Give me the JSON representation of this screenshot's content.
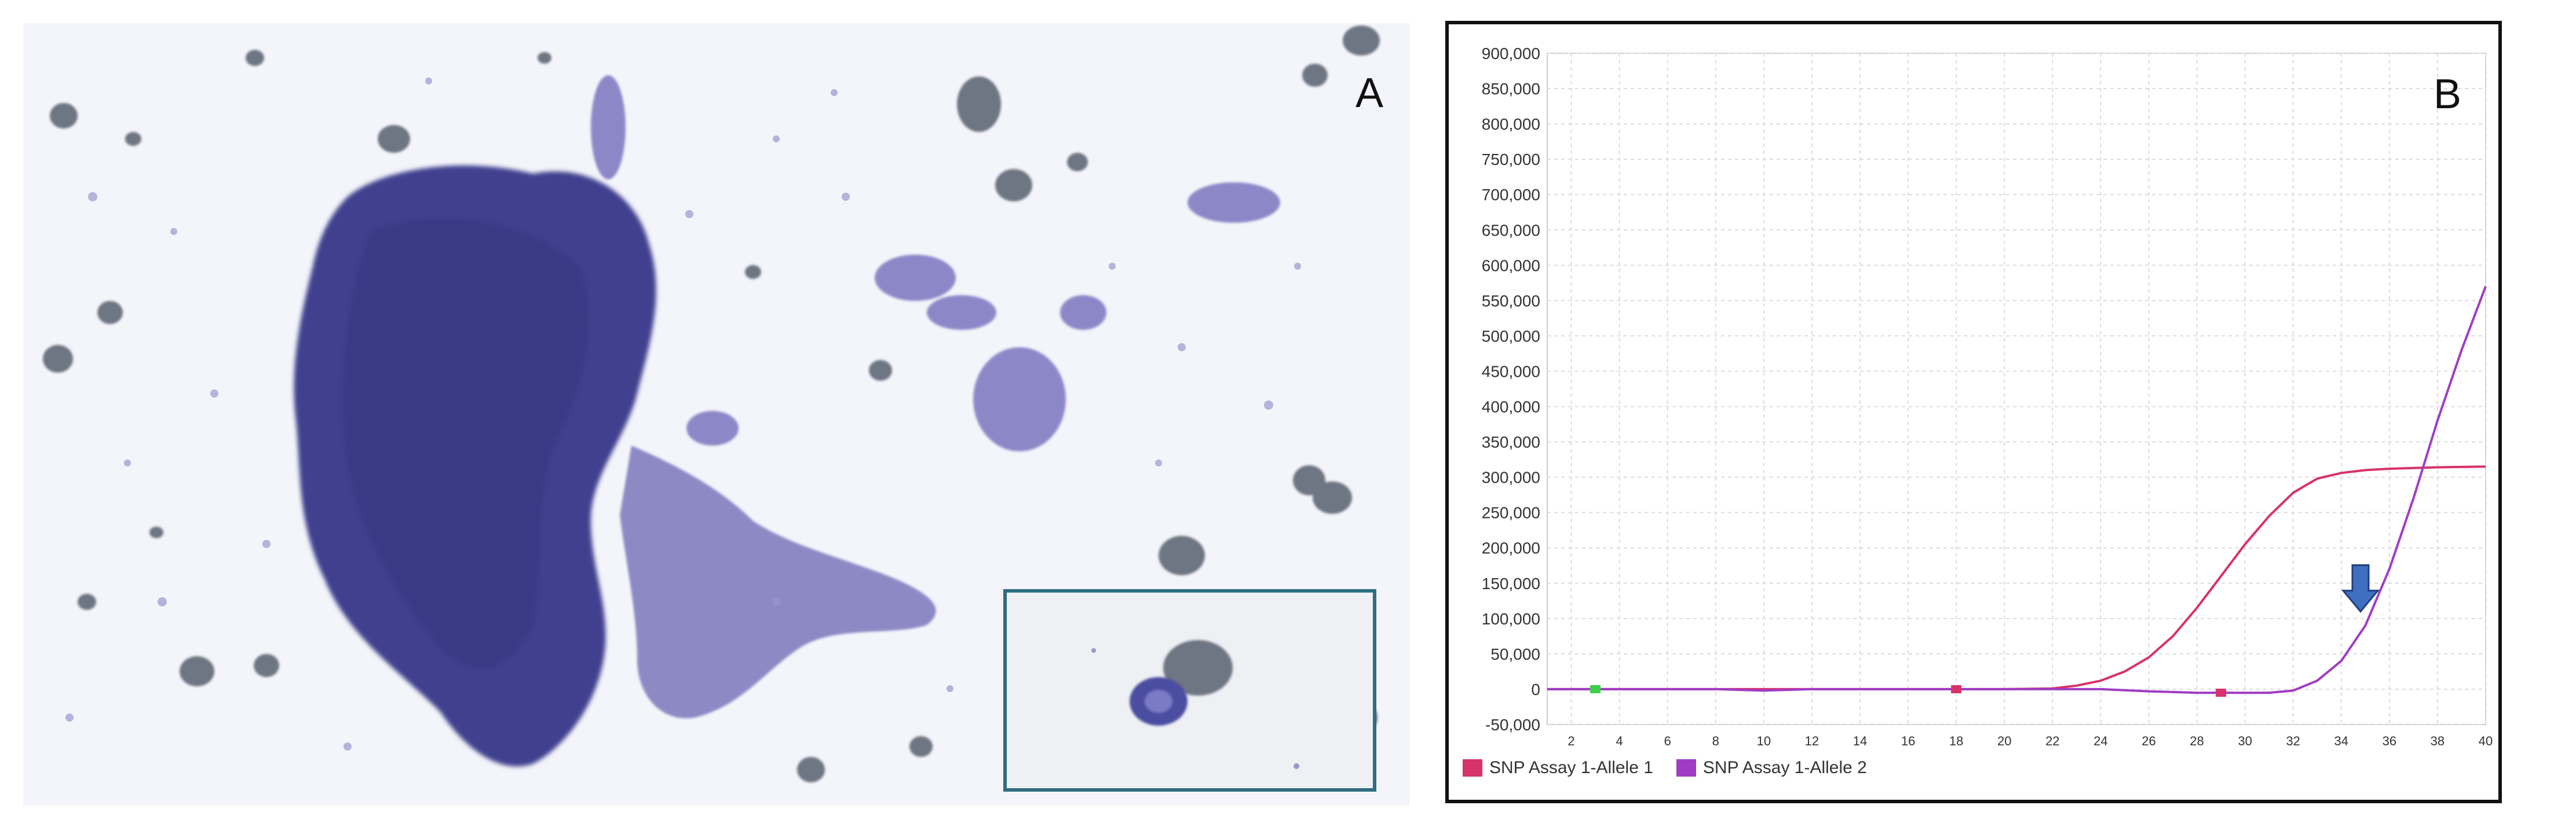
{
  "panels": {
    "a_label": "A",
    "b_label": "B"
  },
  "colors": {
    "stain": "#4c4ea0",
    "stain_dark": "#3b3c8f",
    "debris": "#6e7583",
    "inset_border": "#2e6e80",
    "allele1": "#d8326a",
    "allele2": "#a03cc4",
    "arrow": "#3f6fc0"
  },
  "chart_data": {
    "type": "line",
    "title": "",
    "xlabel": "",
    "ylabel": "",
    "xlim": [
      1,
      40
    ],
    "ylim": [
      -50000,
      900000
    ],
    "x_ticks": [
      2,
      4,
      6,
      8,
      10,
      12,
      14,
      16,
      18,
      20,
      22,
      24,
      26,
      28,
      30,
      32,
      34,
      36,
      38,
      40
    ],
    "y_ticks": [
      -50000,
      0,
      50000,
      100000,
      150000,
      200000,
      250000,
      300000,
      350000,
      400000,
      450000,
      500000,
      550000,
      600000,
      650000,
      700000,
      750000,
      800000,
      850000,
      900000
    ],
    "y_tick_labels": [
      "-50,000",
      "0",
      "50,000",
      "100,000",
      "150,000",
      "200,000",
      "250,000",
      "300,000",
      "350,000",
      "400,000",
      "450,000",
      "500,000",
      "550,000",
      "600,000",
      "650,000",
      "700,000",
      "750,000",
      "800,000",
      "850,000",
      "900,000"
    ],
    "grid": true,
    "legend_position": "bottom-left",
    "series": [
      {
        "name": "SNP Assay 1-Allele 1",
        "color": "#d8326a",
        "x": [
          1,
          4,
          8,
          12,
          16,
          20,
          22,
          23,
          24,
          25,
          26,
          27,
          28,
          29,
          30,
          31,
          32,
          33,
          34,
          35,
          36,
          38,
          40
        ],
        "y": [
          0,
          0,
          0,
          0,
          0,
          0,
          1000,
          5000,
          12000,
          25000,
          45000,
          75000,
          115000,
          160000,
          205000,
          245000,
          278000,
          298000,
          306000,
          310000,
          312000,
          314000,
          315000
        ]
      },
      {
        "name": "SNP Assay 1-Allele 2",
        "color": "#a03cc4",
        "x": [
          1,
          4,
          8,
          10,
          12,
          16,
          20,
          22,
          24,
          26,
          28,
          30,
          31,
          32,
          33,
          34,
          35,
          36,
          37,
          38,
          39,
          40
        ],
        "y": [
          0,
          0,
          0,
          -2000,
          0,
          0,
          0,
          0,
          0,
          -3000,
          -5000,
          -5000,
          -5000,
          -2000,
          12000,
          40000,
          90000,
          170000,
          270000,
          380000,
          480000,
          570000
        ]
      }
    ],
    "markers": [
      {
        "x": 3,
        "y": 0,
        "color": "#3ccf4a"
      },
      {
        "x": 18,
        "y": 0,
        "color": "#d8326a"
      },
      {
        "x": 29,
        "y": -5000,
        "color": "#d8326a"
      }
    ],
    "annotations": [
      {
        "type": "arrow-down",
        "x": 34.8,
        "y": 110000,
        "color": "#3f6fc0"
      }
    ]
  }
}
